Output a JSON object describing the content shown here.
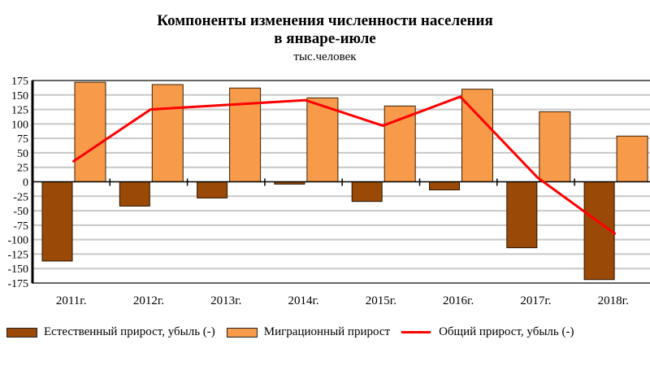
{
  "chart_data": {
    "type": "bar",
    "title_line1": "Компоненты изменения численности населения",
    "title_line2": "в январе-июле",
    "subtitle": "тыс.человек",
    "categories": [
      "2011г.",
      "2012г.",
      "2013г.",
      "2014г.",
      "2015г.",
      "2016г.",
      "2017г.",
      "2018г."
    ],
    "ylim": [
      -175,
      175
    ],
    "yticks": [
      175,
      150,
      125,
      100,
      75,
      50,
      25,
      0,
      -25,
      -50,
      -75,
      -100,
      -125,
      -150,
      -175
    ],
    "grid": true,
    "legend_position": "bottom",
    "series": [
      {
        "name": "Естественный прирост, убыль (-)",
        "type": "bar",
        "color": "#9a4a06",
        "values": [
          -137,
          -42,
          -28,
          -4,
          -34,
          -14,
          -114,
          -169
        ]
      },
      {
        "name": "Миграционный прирост",
        "type": "bar",
        "color": "#f79a4a",
        "values": [
          172,
          168,
          162,
          145,
          131,
          160,
          121,
          79
        ]
      },
      {
        "name": "Общий прирост, убыль (-)",
        "type": "line",
        "color": "#ff0000",
        "values": [
          35,
          125,
          133,
          141,
          97,
          147,
          7,
          -90
        ]
      }
    ]
  }
}
